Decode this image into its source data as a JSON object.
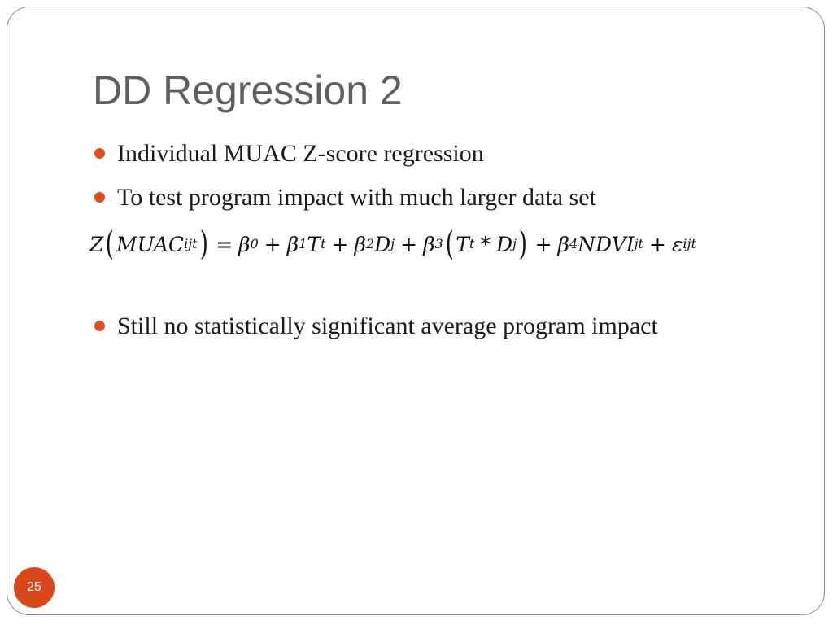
{
  "slide": {
    "title": "DD Regression 2",
    "bullets": [
      "Individual MUAC Z-score regression",
      "To test program impact with much larger data set",
      "Still no statistically significant average program impact"
    ],
    "equation": {
      "lhs_fn": "Z",
      "lhs_var": "MUAC",
      "lhs_sub": "ijt",
      "equals": "=",
      "plus": "+",
      "times": "*",
      "b0": "β",
      "b0_sub": "0",
      "b1": "β",
      "b1_sub": "1",
      "t1": "T",
      "t1_sub": "t",
      "b2": "β",
      "b2_sub": "2",
      "d1": "D",
      "d1_sub": "j",
      "b3": "β",
      "b3_sub": "3",
      "t2": "T",
      "t2_sub": "t",
      "d2": "D",
      "d2_sub": "j",
      "b4": "β",
      "b4_sub": "4",
      "ndvi": "NDVI",
      "ndvi_sub": "jt",
      "eps": "ε",
      "eps_sub": "ijt"
    },
    "page_number": "25"
  },
  "colors": {
    "accent": "#dd4f1d",
    "title": "#5f5f5f",
    "frame": "#8a8a8a"
  }
}
